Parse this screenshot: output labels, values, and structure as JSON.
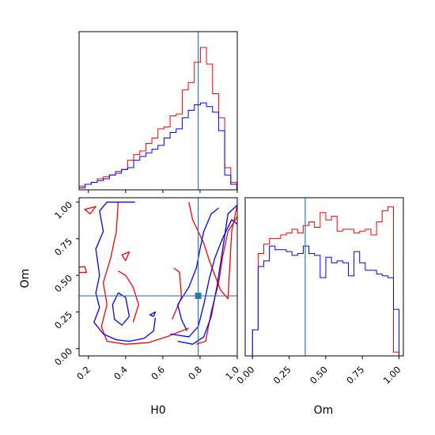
{
  "chart_data": {
    "type": "corner",
    "parameters": [
      "H0",
      "Om"
    ],
    "truths": {
      "H0": 0.79,
      "Om": 0.36
    },
    "colors": {
      "red": "#ff0000",
      "blue": "#0000ff",
      "truth": "#2c7bb6"
    },
    "axes": {
      "H0": {
        "range": [
          0.15,
          1.0
        ],
        "ticks": [
          0.2,
          0.4,
          0.6,
          0.8,
          1.0
        ],
        "tick_labels": [
          "0.2",
          "0.4",
          "0.6",
          "0.8",
          "1.0"
        ]
      },
      "Om": {
        "range": [
          -0.05,
          1.03
        ],
        "ticks": [
          0.0,
          0.25,
          0.5,
          0.75,
          1.0
        ],
        "tick_labels": [
          "0.00",
          "0.25",
          "0.50",
          "0.75",
          "1.00"
        ]
      }
    },
    "hist_H0": {
      "bins": [
        0.15,
        0.1826,
        0.2152,
        0.2478,
        0.2804,
        0.313,
        0.3456,
        0.3782,
        0.4108,
        0.4434,
        0.476,
        0.5086,
        0.5412,
        0.5738,
        0.6064,
        0.639,
        0.6716,
        0.7042,
        0.7368,
        0.7694,
        0.802,
        0.8346,
        0.8672,
        0.8998,
        0.9324,
        0.965,
        0.9976
      ],
      "series": [
        {
          "color": "red",
          "counts": [
            2,
            3,
            4,
            6,
            7,
            8,
            10,
            11,
            16,
            19,
            21,
            25,
            28,
            33,
            34,
            40,
            41,
            54,
            58,
            69,
            77,
            68,
            52,
            39,
            12,
            4
          ]
        },
        {
          "color": "blue",
          "counts": [
            1,
            3,
            4,
            5,
            6,
            8,
            9,
            11,
            12,
            16,
            18,
            20,
            22,
            24,
            28,
            31,
            33,
            39,
            43,
            46,
            47,
            45,
            42,
            32,
            8,
            3
          ]
        }
      ]
    },
    "hist_Om": {
      "bins": [
        0.0,
        0.0385,
        0.077,
        0.1155,
        0.154,
        0.1925,
        0.231,
        0.2695,
        0.308,
        0.3465,
        0.385,
        0.4235,
        0.462,
        0.5005,
        0.539,
        0.5775,
        0.616,
        0.6545,
        0.693,
        0.7315,
        0.77,
        0.8085,
        0.847,
        0.8855,
        0.924,
        0.9625,
        1.0
      ],
      "series": [
        {
          "color": "red",
          "counts": [
            14,
            55,
            60,
            63,
            63,
            65,
            66,
            68,
            66,
            70,
            72,
            69,
            77,
            73,
            75,
            67,
            68,
            68,
            66,
            67,
            68,
            65,
            72,
            78,
            80,
            2
          ]
        },
        {
          "color": "blue",
          "counts": [
            14,
            48,
            51,
            59,
            57,
            57,
            56,
            54,
            55,
            59,
            55,
            54,
            42,
            53,
            50,
            51,
            50,
            43,
            56,
            50,
            46,
            46,
            44,
            43,
            42,
            25
          ]
        }
      ]
    },
    "contours_2d": [
      {
        "color": "red",
        "level": "outer",
        "points": [
          [
            0.74,
            0.14
          ],
          [
            0.62,
            0.08
          ],
          [
            0.52,
            0.04
          ],
          [
            0.4,
            0.03
          ],
          [
            0.3,
            0.05
          ],
          [
            0.27,
            0.15
          ],
          [
            0.3,
            0.3
          ],
          [
            0.28,
            0.45
          ],
          [
            0.32,
            0.62
          ],
          [
            0.35,
            0.8
          ],
          [
            0.36,
            1.0
          ]
        ],
        "open": true
      },
      {
        "color": "red",
        "level": "outer2",
        "points": [
          [
            0.78,
            0.03
          ],
          [
            0.83,
            0.05
          ],
          [
            0.86,
            0.25
          ],
          [
            0.9,
            0.45
          ],
          [
            0.92,
            0.62
          ],
          [
            0.95,
            0.8
          ],
          [
            1.0,
            0.9
          ]
        ],
        "open": true
      },
      {
        "color": "red",
        "level": "inner",
        "points": [
          [
            0.44,
            0.18
          ],
          [
            0.47,
            0.3
          ],
          [
            0.44,
            0.42
          ],
          [
            0.4,
            0.5
          ],
          [
            0.36,
            0.53
          ]
        ],
        "open": true
      },
      {
        "color": "red",
        "level": "inner",
        "points": [
          [
            0.65,
            0.2
          ],
          [
            0.7,
            0.35
          ],
          [
            0.69,
            0.52
          ],
          [
            0.66,
            0.55
          ]
        ],
        "open": true
      },
      {
        "color": "red",
        "level": "upper",
        "points": [
          [
            0.74,
            1.0
          ],
          [
            0.76,
            0.88
          ],
          [
            0.79,
            0.8
          ],
          [
            0.82,
            0.72
          ],
          [
            0.85,
            0.6
          ],
          [
            0.88,
            0.5
          ],
          [
            0.91,
            0.4
          ],
          [
            0.95,
            0.34
          ],
          [
            0.97,
            0.8
          ],
          [
            1.0,
            0.98
          ]
        ],
        "open": true
      },
      {
        "color": "red",
        "level": "island",
        "points": [
          [
            0.12,
            0.55
          ],
          [
            0.18,
            0.56
          ],
          [
            0.19,
            0.52
          ],
          [
            0.12,
            0.52
          ],
          [
            0.12,
            0.55
          ]
        ],
        "open": false
      },
      {
        "color": "red",
        "level": "island",
        "points": [
          [
            0.18,
            0.95
          ],
          [
            0.24,
            0.97
          ],
          [
            0.21,
            0.92
          ],
          [
            0.18,
            0.95
          ]
        ],
        "open": false
      },
      {
        "color": "red",
        "level": "island",
        "points": [
          [
            0.38,
            0.64
          ],
          [
            0.42,
            0.66
          ],
          [
            0.4,
            0.6
          ],
          [
            0.38,
            0.64
          ]
        ],
        "open": false
      },
      {
        "color": "blue",
        "level": "outer",
        "points": [
          [
            0.56,
            0.21
          ],
          [
            0.55,
            0.12
          ],
          [
            0.5,
            0.07
          ],
          [
            0.42,
            0.05
          ],
          [
            0.35,
            0.06
          ],
          [
            0.28,
            0.1
          ],
          [
            0.23,
            0.18
          ],
          [
            0.26,
            0.28
          ],
          [
            0.24,
            0.38
          ],
          [
            0.26,
            0.5
          ],
          [
            0.24,
            0.68
          ],
          [
            0.28,
            0.8
          ],
          [
            0.26,
            0.94
          ],
          [
            0.3,
            1.0
          ],
          [
            0.45,
            1.0
          ]
        ],
        "open": true
      },
      {
        "color": "blue",
        "level": "outer",
        "points": [
          [
            0.68,
            0.05
          ],
          [
            0.76,
            0.03
          ],
          [
            0.82,
            0.08
          ],
          [
            0.86,
            0.22
          ],
          [
            0.89,
            0.42
          ],
          [
            0.91,
            0.58
          ],
          [
            0.93,
            0.75
          ],
          [
            0.95,
            0.92
          ],
          [
            1.0,
            0.98
          ]
        ],
        "open": true
      },
      {
        "color": "blue",
        "level": "inner",
        "points": [
          [
            0.64,
            0.1
          ],
          [
            0.74,
            0.08
          ],
          [
            0.79,
            0.15
          ],
          [
            0.82,
            0.3
          ],
          [
            0.85,
            0.48
          ],
          [
            0.88,
            0.62
          ],
          [
            0.92,
            0.75
          ],
          [
            0.97,
            0.88
          ],
          [
            1.0,
            0.85
          ]
        ],
        "open": true
      },
      {
        "color": "blue",
        "level": "inner",
        "points": [
          [
            0.73,
            0.12
          ],
          [
            0.7,
            0.2
          ],
          [
            0.68,
            0.3
          ],
          [
            0.74,
            0.42
          ],
          [
            0.78,
            0.55
          ],
          [
            0.8,
            0.68
          ],
          [
            0.82,
            0.8
          ],
          [
            0.86,
            0.92
          ],
          [
            0.9,
            0.96
          ]
        ],
        "open": true
      },
      {
        "color": "blue",
        "level": "inner",
        "points": [
          [
            0.33,
            0.3
          ],
          [
            0.36,
            0.38
          ],
          [
            0.4,
            0.35
          ],
          [
            0.42,
            0.22
          ],
          [
            0.38,
            0.16
          ],
          [
            0.34,
            0.2
          ],
          [
            0.33,
            0.3
          ]
        ],
        "open": false
      },
      {
        "color": "blue",
        "level": "island",
        "points": [
          [
            0.53,
            0.23
          ],
          [
            0.56,
            0.25
          ],
          [
            0.55,
            0.22
          ],
          [
            0.53,
            0.23
          ]
        ],
        "open": false
      }
    ]
  }
}
